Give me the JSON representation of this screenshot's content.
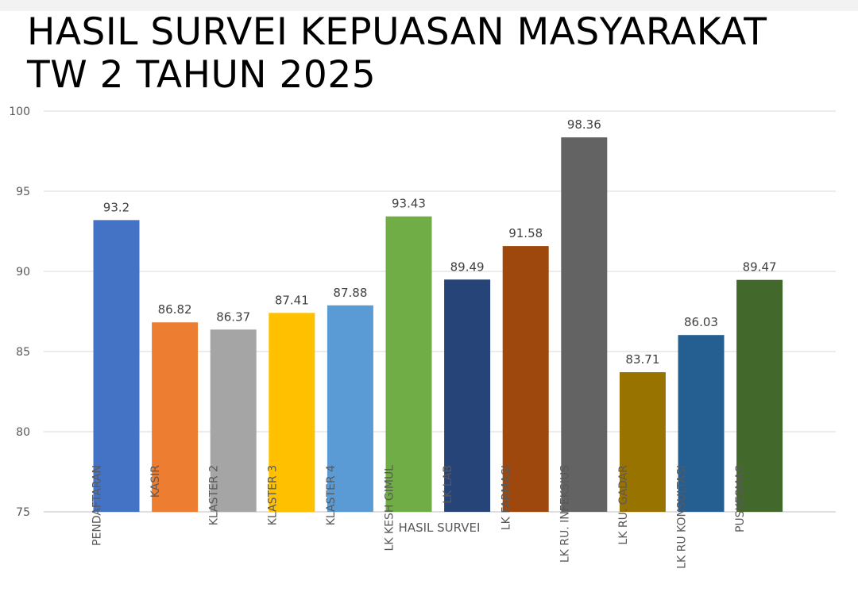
{
  "title_lines": [
    "HASIL SURVEI KEPUASAN MASYARAKAT",
    "TW 2 TAHUN 2025"
  ],
  "chart_data": {
    "type": "bar",
    "title": "HASIL SURVEI KEPUASAN MASYARAKAT TW 2 TAHUN 2025",
    "xlabel": "HASIL SURVEI",
    "ylabel": "",
    "ylim": [
      75,
      100
    ],
    "yticks": [
      75,
      80,
      85,
      90,
      95,
      100
    ],
    "grid": true,
    "legend": "none",
    "categories": [
      "PENDAFTARAN",
      "KASIR",
      "KLASTER 2",
      "KLASTER 3",
      "KLASTER 4",
      "LK KESH GIMUL",
      "LK LAB",
      "LK FARMASI",
      "LK RU. INFEKSIUS",
      "LK RU. GADAR",
      "LK RU KONSULTASI",
      "PUSKESMAS"
    ],
    "values": [
      93.2,
      86.82,
      86.37,
      87.41,
      87.88,
      93.43,
      89.49,
      91.58,
      98.36,
      83.71,
      86.03,
      89.47
    ],
    "data_labels": [
      "93.2",
      "86.82",
      "86.37",
      "87.41",
      "87.88",
      "93.43",
      "89.49",
      "91.58",
      "98.36",
      "83.71",
      "86.03",
      "89.47"
    ],
    "colors": [
      "#4472c4",
      "#ed7d31",
      "#a5a5a5",
      "#ffc000",
      "#5b9bd5",
      "#70ad47",
      "#264478",
      "#9e480e",
      "#636363",
      "#997300",
      "#255e91",
      "#43682b"
    ]
  }
}
